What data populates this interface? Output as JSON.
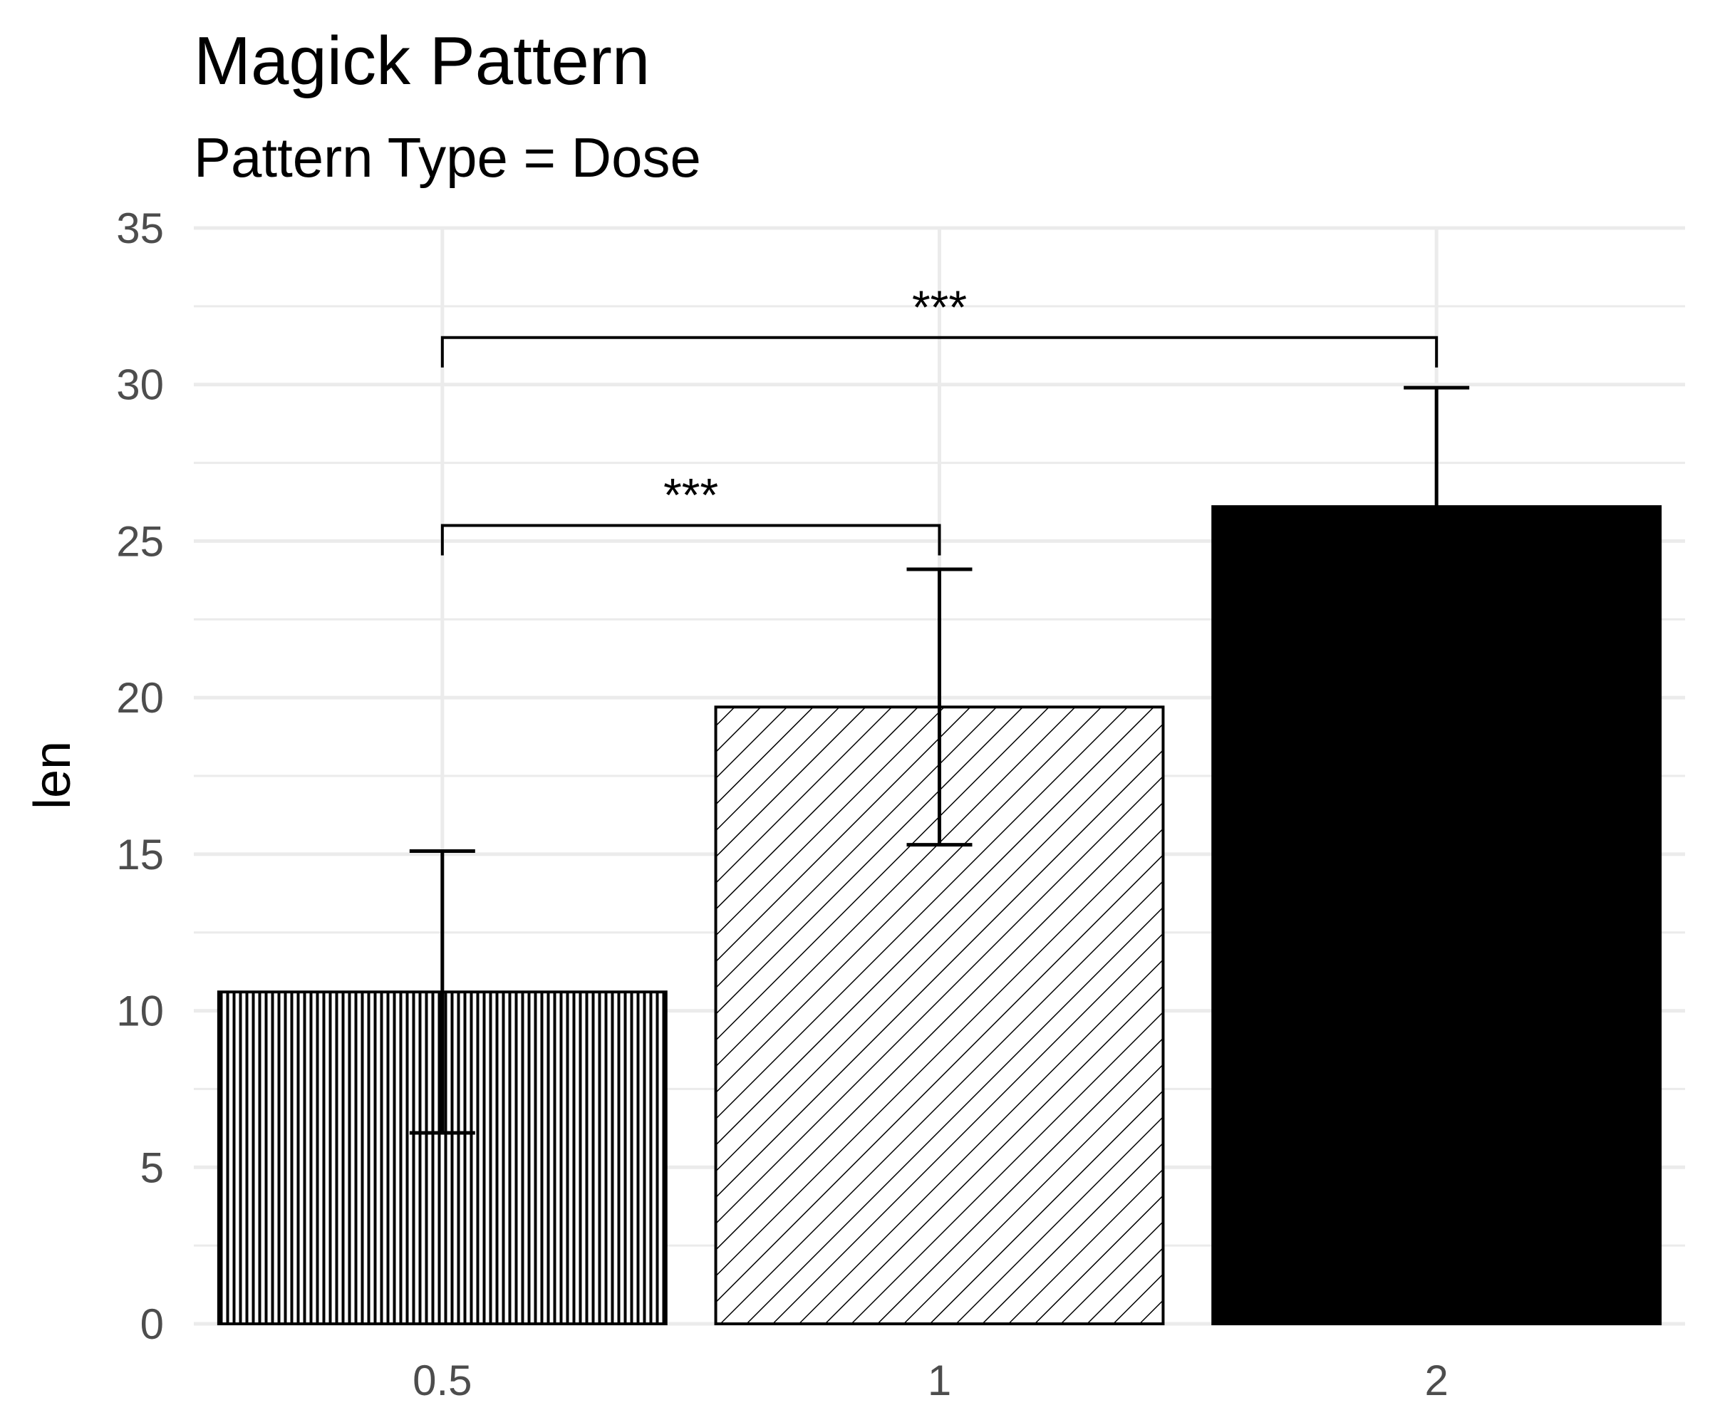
{
  "chart_data": {
    "type": "bar",
    "title": "Magick Pattern",
    "subtitle": "Pattern Type = Dose",
    "xlabel": "",
    "ylabel": "len",
    "categories": [
      "0.5",
      "1",
      "2"
    ],
    "values": [
      10.6,
      19.7,
      26.1
    ],
    "error_bars": [
      {
        "lower": 6.1,
        "upper": 15.1
      },
      {
        "lower": 15.3,
        "upper": 24.1
      },
      {
        "lower": 22.3,
        "upper": 29.9
      }
    ],
    "patterns": [
      "vertical-lines",
      "diagonal-lines",
      "solid"
    ],
    "ylim": [
      0,
      35
    ],
    "y_ticks": [
      0,
      5,
      10,
      15,
      20,
      25,
      30,
      35
    ],
    "grid": true,
    "legend": "none",
    "significance": [
      {
        "from": "0.5",
        "to": "1",
        "y": 25.5,
        "label": "***"
      },
      {
        "from": "0.5",
        "to": "2",
        "y": 31.5,
        "label": "***"
      }
    ],
    "colors": {
      "bar_outline": "#000000",
      "grid": "#ebebeb",
      "tick_text": "#4d4d4d",
      "solid_fill": "#000000"
    }
  }
}
